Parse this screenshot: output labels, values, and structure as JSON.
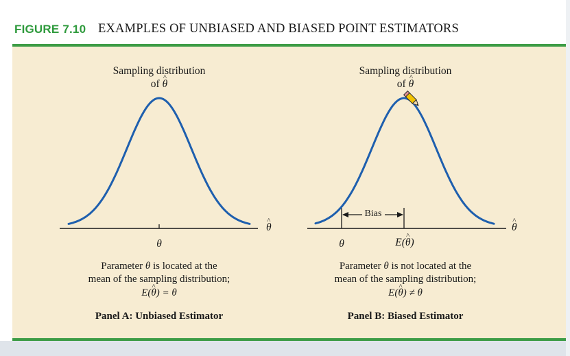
{
  "figure": {
    "label": "FIGURE 7.10",
    "title": "EXAMPLES OF UNBIASED AND BIASED POINT ESTIMATORS"
  },
  "panel_a": {
    "curve_label_line1": "Sampling distribution",
    "curve_label_line2_prefix": "of",
    "axis_symbol": "θ",
    "parameter_tick": "θ",
    "desc_line1_prefix": "Parameter",
    "desc_line1_symbol": "θ",
    "desc_line1_suffix": "is located at the",
    "desc_line2": "mean of the sampling distribution;",
    "desc_line3_symbol": "E(θ) = θ",
    "name": "Panel A:  Unbiased Estimator"
  },
  "panel_b": {
    "curve_label_line1": "Sampling distribution",
    "curve_label_line2_prefix": "of",
    "axis_symbol": "θ",
    "parameter_tick": "θ",
    "mean_tick": "E(θ)",
    "bias_label": "Bias",
    "desc_line1_prefix": "Parameter",
    "desc_line1_symbol": "θ",
    "desc_line1_suffix": "is not located at the",
    "desc_line2": "mean of the sampling distribution;",
    "desc_line3_symbol": "E(θ) ≠ θ",
    "name": "Panel B:  Biased Estimator"
  },
  "colors": {
    "curve": "#1e5fae",
    "accent_green": "#3d9c46",
    "panel_background": "#f7ecd2"
  },
  "icons": [
    "pencil-cursor-icon"
  ]
}
